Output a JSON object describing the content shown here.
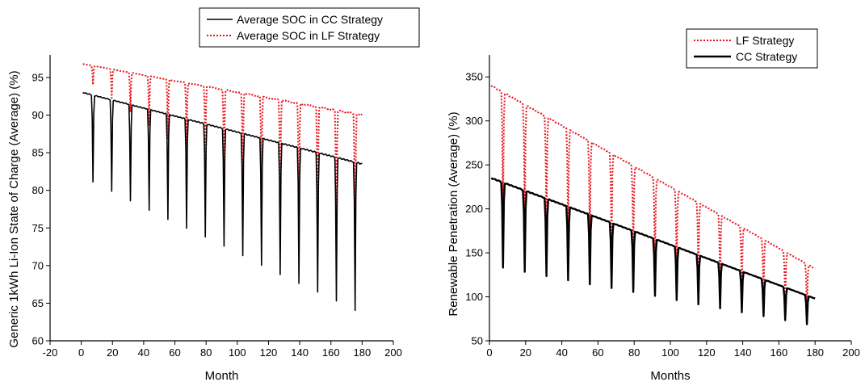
{
  "colors": {
    "cc": "#000000",
    "lf": "#e8141c"
  },
  "chart_data": [
    {
      "type": "line",
      "xlabel": "Month",
      "ylabel": "Generic 1kWh Li-Ion State of Charge (Average) (%)",
      "xlim": [
        -20,
        200
      ],
      "ylim": [
        60,
        98
      ],
      "xticks": [
        -20,
        0,
        20,
        40,
        60,
        80,
        100,
        120,
        140,
        160,
        180,
        200
      ],
      "yticks": [
        60,
        65,
        70,
        75,
        80,
        85,
        90,
        95
      ],
      "grid": false,
      "legend_position": "top-center",
      "legend": [
        {
          "name": "Average SOC in CC Strategy",
          "series": "cc",
          "style": "solid"
        },
        {
          "name": "Average SOC in LF Strategy",
          "series": "lf",
          "style": "dotted"
        }
      ],
      "series": {
        "cc": {
          "name": "Average SOC in CC Strategy",
          "start_max": 93.0,
          "end_max": 83.5,
          "start_min": 81.7,
          "end_min": 63.5
        },
        "lf": {
          "name": "Average SOC in LF Strategy",
          "start_max": 96.8,
          "end_max": 90.0,
          "start_min": 95.0,
          "end_min": 68.5
        }
      }
    },
    {
      "type": "line",
      "xlabel": "Months",
      "ylabel": "Renewable Penetration (Average) (%)",
      "xlim": [
        0,
        200
      ],
      "ylim": [
        50,
        375
      ],
      "xticks": [
        0,
        20,
        40,
        60,
        80,
        100,
        120,
        140,
        160,
        180,
        200
      ],
      "yticks": [
        50,
        100,
        150,
        200,
        250,
        300,
        350
      ],
      "grid": false,
      "legend_position": "top-right",
      "legend": [
        {
          "name": "LF Strategy",
          "series": "lf",
          "style": "dotted"
        },
        {
          "name": "CC Strategy",
          "series": "cc",
          "style": "solid"
        }
      ],
      "series": {
        "lf": {
          "name": "LF Strategy",
          "start_max": 340,
          "end_max": 132,
          "start_min": 200,
          "end_min": 80
        },
        "cc": {
          "name": "CC Strategy",
          "start_max": 235,
          "end_max": 98,
          "start_min": 135,
          "end_min": 67
        }
      }
    }
  ]
}
